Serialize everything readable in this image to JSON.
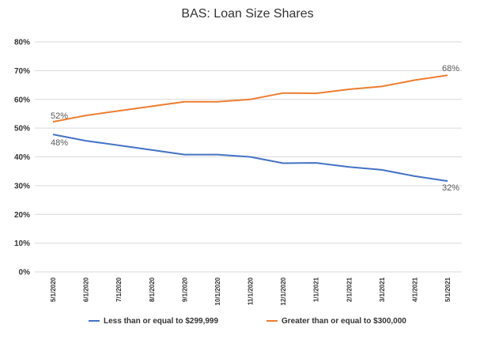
{
  "chart_data": {
    "type": "line",
    "title": "BAS: Loan Size Shares",
    "xlabel": "",
    "ylabel": "",
    "categories": [
      "5/1/2020",
      "6/1/2020",
      "7/1/2020",
      "8/1/2020",
      "9/1/2020",
      "10/1/2020",
      "11/1/2020",
      "12/1/2020",
      "1/1/2021",
      "2/1/2021",
      "3/1/2021",
      "4/1/2021",
      "5/1/2021"
    ],
    "y_ticks": [
      "0%",
      "10%",
      "20%",
      "30%",
      "40%",
      "50%",
      "60%",
      "70%",
      "80%"
    ],
    "ylim": [
      0,
      80
    ],
    "grid": true,
    "legend_position": "bottom",
    "series": [
      {
        "name": "Less than or equal to $299,999",
        "color": "#4472C4",
        "values": [
          47.8,
          45.6,
          44.0,
          42.4,
          40.8,
          40.8,
          40.0,
          37.8,
          37.9,
          36.5,
          35.5,
          33.3,
          31.6
        ],
        "data_labels": [
          {
            "index": 0,
            "text": "48%"
          },
          {
            "index": 12,
            "text": "32%"
          }
        ]
      },
      {
        "name": "Greater than or equal to $300,000",
        "color": "#ED7D31",
        "values": [
          52.2,
          54.4,
          56.0,
          57.6,
          59.2,
          59.2,
          60.0,
          62.2,
          62.1,
          63.5,
          64.5,
          66.7,
          68.4
        ],
        "data_labels": [
          {
            "index": 0,
            "text": "52%"
          },
          {
            "index": 12,
            "text": "68%"
          }
        ]
      }
    ]
  }
}
